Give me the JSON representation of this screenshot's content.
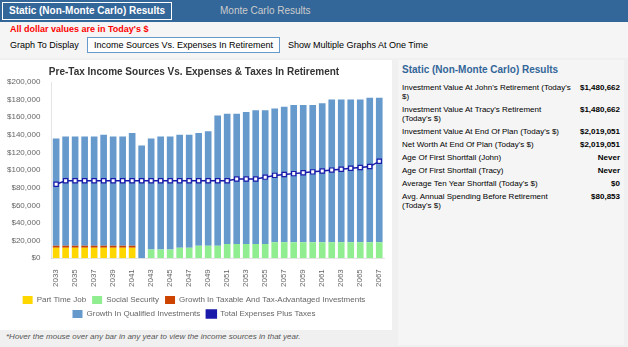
{
  "chart_data": {
    "type": "bar",
    "title": "Pre-Tax Income Sources Vs. Expenses & Taxes In Retirement",
    "subtitle": "All dollar values are in Today's $",
    "annotations": [
      "Static (Non-Monte Carlo) Results",
      "Monte Carlo Results",
      "Graph To Display",
      "Income Sources Vs. Expenses In Retirement",
      "Show Multiple Graphs At One Time",
      "Static (Non-Monte Carlo) Results",
      [
        "Investment Value At John's Retirement (Today's $)",
        "$1,480,662"
      ],
      [
        "Investment Value At Tracy's Retirement (Today's $)",
        "$1,480,662"
      ],
      [
        "Investment Value At End Of Plan (Today's $)",
        "$2,019,051"
      ],
      [
        "Net Worth At End Of Plan (Today's $)",
        "$2,019,051"
      ],
      [
        "Age Of First Shortfall (John)",
        "Never"
      ],
      [
        "Age Of First Shortfall (Tracy)",
        "Never"
      ],
      [
        "Average Ten Year Shortfall (Today's $)",
        "$0"
      ],
      [
        "Avg. Annual Spending Before Retirement (Today's $)",
        "$80,853"
      ],
      "*Hover the mouse over any bar in any year to view the income sources in that year."
    ],
    "categories": [
      "2033",
      null,
      "2035",
      null,
      "2037",
      null,
      "2039",
      null,
      "2041",
      null,
      "2043",
      null,
      "2045",
      null,
      "2047",
      null,
      "2049",
      null,
      "2051",
      null,
      "2053",
      null,
      "2055",
      null,
      "2057",
      null,
      "2059",
      null,
      "2061",
      null,
      "2063",
      null,
      "2065",
      null,
      "2067"
    ],
    "series": [
      {
        "name": "Part Time Job",
        "color": "#FFD700",
        "type": "bar",
        "values": [
          12000,
          12000,
          12000,
          12000,
          12000,
          12000,
          12000,
          12000,
          12000,
          0,
          0,
          0,
          0,
          0,
          0,
          0,
          0,
          0,
          0,
          0,
          0,
          0,
          0,
          0,
          0,
          0,
          0,
          0,
          0,
          0,
          0,
          0,
          0,
          0,
          0
        ]
      },
      {
        "name": "Social Security",
        "color": "#90EE90",
        "type": "bar",
        "values": [
          0,
          0,
          0,
          0,
          0,
          0,
          0,
          0,
          0,
          0,
          10000,
          10000,
          10000,
          12000,
          12000,
          14000,
          14000,
          14000,
          16000,
          16000,
          16000,
          16000,
          16000,
          18000,
          18000,
          18000,
          18000,
          18000,
          18000,
          18000,
          18000,
          18000,
          18000,
          18000,
          18000
        ]
      },
      {
        "name": "Growth In Taxable And Tax-Advantaged Investments",
        "color": "#CC4400",
        "type": "bar",
        "values": [
          2000,
          2000,
          2000,
          2000,
          2000,
          2000,
          2000,
          2000,
          2000,
          0,
          0,
          0,
          0,
          0,
          0,
          0,
          0,
          0,
          0,
          0,
          0,
          0,
          0,
          0,
          0,
          0,
          0,
          0,
          0,
          0,
          0,
          0,
          0,
          0,
          0
        ]
      },
      {
        "name": "Growth In Qualified Investments",
        "color": "#6699CC",
        "type": "bar",
        "values": [
          122000,
          124000,
          124000,
          124000,
          124000,
          126000,
          124000,
          124000,
          128000,
          128000,
          126000,
          128000,
          128000,
          128000,
          128000,
          128000,
          130000,
          148000,
          148000,
          148000,
          150000,
          152000,
          152000,
          152000,
          154000,
          156000,
          156000,
          156000,
          158000,
          162000,
          162000,
          162000,
          162000,
          164000,
          164000
        ]
      },
      {
        "name": "Total Expenses Plus Taxes",
        "color": "#1a1aaa",
        "type": "line",
        "marker": "square",
        "values": [
          84000,
          88000,
          88000,
          88000,
          88000,
          88000,
          88000,
          88000,
          88000,
          88000,
          88000,
          88000,
          88000,
          88000,
          88000,
          88000,
          88000,
          88000,
          88000,
          90000,
          90000,
          90000,
          92000,
          94000,
          95000,
          96000,
          97000,
          98000,
          99000,
          100000,
          101000,
          102000,
          103000,
          104000,
          110000
        ]
      }
    ],
    "stacked": true,
    "ylim": [
      0,
      200000
    ],
    "yticks": [
      {
        "value": 0,
        "label": "$0"
      },
      {
        "value": 20000,
        "label": "$20,000"
      },
      {
        "value": 40000,
        "label": "$40,000"
      },
      {
        "value": 60000,
        "label": "$60,000"
      },
      {
        "value": 80000,
        "label": "$80,000"
      },
      {
        "value": 100000,
        "label": "$100,000"
      },
      {
        "value": 120000,
        "label": "$120,000"
      },
      {
        "value": 140000,
        "label": "$140,000"
      },
      {
        "value": 160000,
        "label": "$160,000"
      },
      {
        "value": 180000,
        "label": "$180,000"
      },
      {
        "value": 200000,
        "label": "$200,000"
      }
    ],
    "grid": false,
    "legend": "bottom"
  }
}
